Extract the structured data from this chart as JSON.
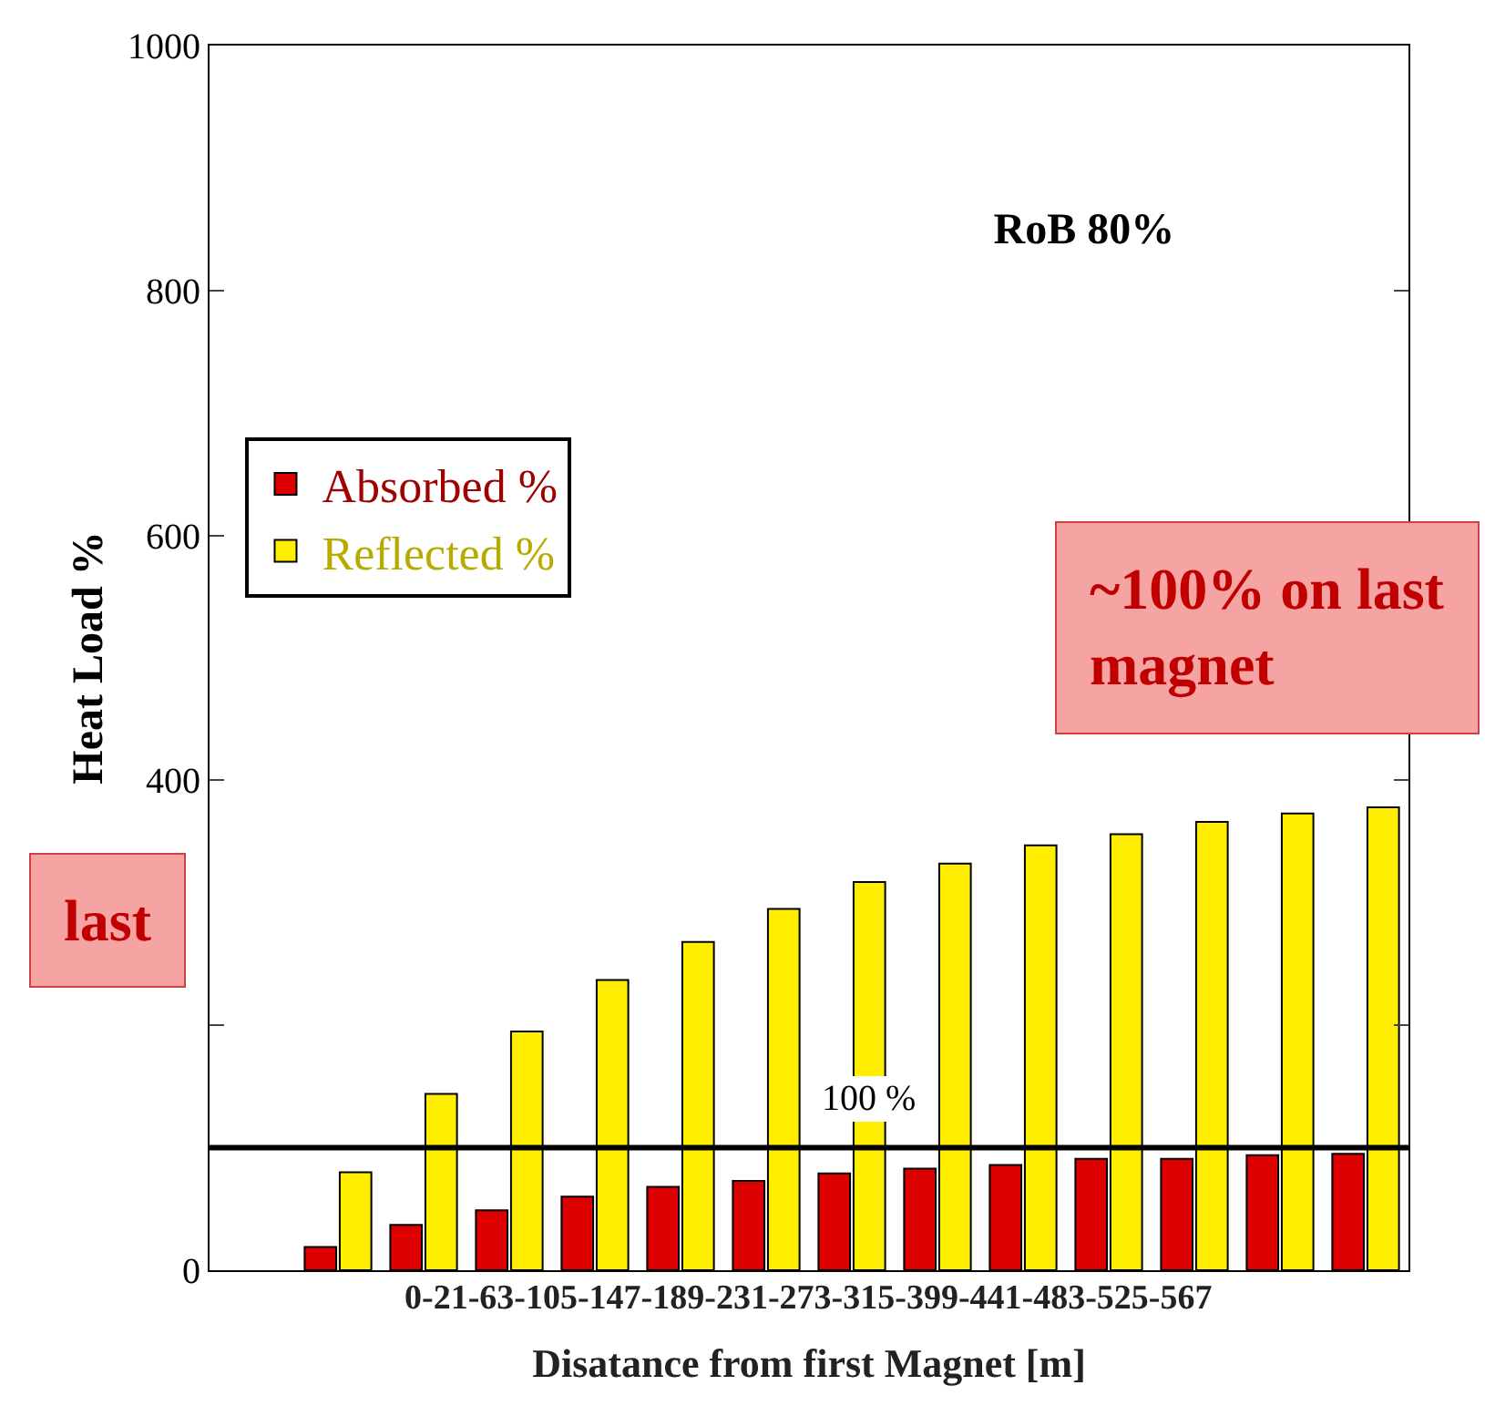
{
  "chart_data": {
    "type": "bar",
    "title": "RoB 80%",
    "xlabel": "Disatance from first Magnet [m]",
    "ylabel": "Heat Load %",
    "categories": [
      null,
      null,
      null,
      null,
      null,
      null,
      null,
      null,
      null,
      null,
      null,
      null,
      null,
      null
    ],
    "series": [
      {
        "name": "Absorbed %",
        "color": "#dd0000",
        "values": [
          null,
          19,
          37,
          49,
          60,
          68,
          73,
          79,
          83,
          86,
          91,
          91,
          94,
          95
        ]
      },
      {
        "name": "Reflected %",
        "color": "#ffee00",
        "values": [
          null,
          80,
          144,
          195,
          237,
          268,
          295,
          317,
          332,
          347,
          356,
          366,
          373,
          378
        ]
      }
    ],
    "ylim": [
      0,
      1000
    ],
    "yticks": [
      0,
      {
        "value": 200,
        "label": null
      },
      400,
      600,
      800,
      1000
    ],
    "ref_lines": [
      {
        "axis": "y",
        "value": 100,
        "label": "100 %",
        "color": "#000000"
      }
    ],
    "annotations": [
      "0-21-63-105-147-189-231-273-315-399-441-483-525-567",
      "~100% on last magnet",
      "last"
    ],
    "legend": "top left"
  }
}
